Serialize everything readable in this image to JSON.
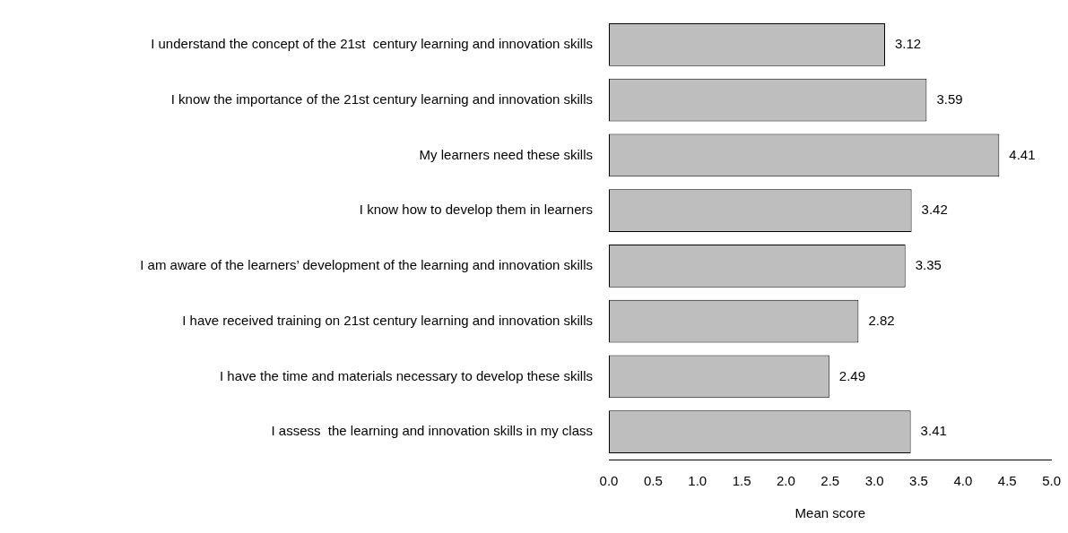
{
  "chart_data": {
    "type": "bar",
    "orientation": "horizontal",
    "xlabel": "Mean score",
    "categories": [
      "I understand the concept of the 21st  century learning and innovation skills",
      "I know the importance of the 21st century learning and innovation skills",
      "My learners need these skills",
      "I know how to develop them in learners",
      "I am aware of the learners’ development of the learning and innovation skills",
      "I have received training on 21st century learning and innovation skills",
      "I have the time and materials necessary to develop these skills",
      "I assess  the learning and innovation skills in my class"
    ],
    "values": [
      3.12,
      3.59,
      4.41,
      3.42,
      3.35,
      2.82,
      2.49,
      3.41
    ],
    "color": "#bebebe",
    "data_labels": true,
    "grid": false,
    "legend": false,
    "xlim": [
      0,
      5
    ],
    "xticks": [
      {
        "value": 0,
        "label": "0.0"
      },
      {
        "value": 0.5,
        "label": "0.5"
      },
      {
        "value": 1,
        "label": "1.0"
      },
      {
        "value": 1.5,
        "label": "1.5"
      },
      {
        "value": 2,
        "label": "2.0"
      },
      {
        "value": 2.5,
        "label": "2.5"
      },
      {
        "value": 3,
        "label": "3.0"
      },
      {
        "value": 3.5,
        "label": "3.5"
      },
      {
        "value": 4,
        "label": "4.0"
      },
      {
        "value": 4.5,
        "label": "4.5"
      },
      {
        "value": 5,
        "label": "5.0"
      }
    ]
  }
}
